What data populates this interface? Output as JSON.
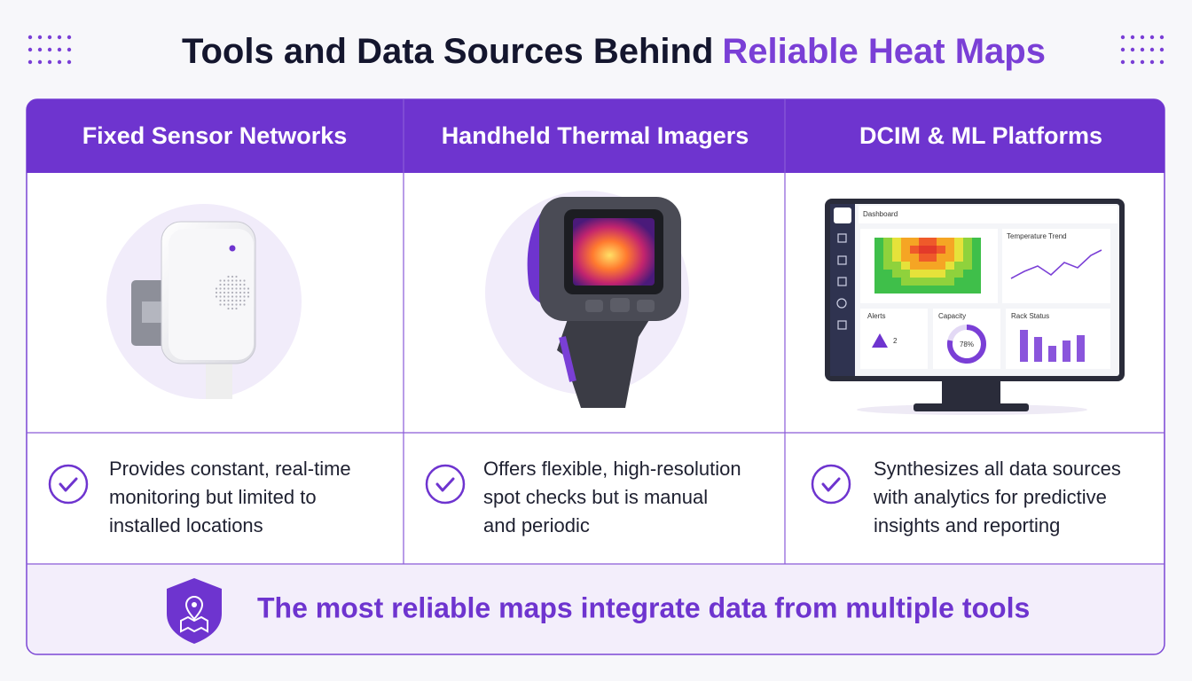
{
  "header": {
    "title": "Tools and Data Sources Behind",
    "title_highlight": "Reliable Heat Maps"
  },
  "columns": [
    {
      "title": "Fixed Sensor Networks",
      "description": [
        "Provides constant, real-time",
        "monitoring but limited to",
        "installed locations"
      ]
    },
    {
      "title": "Handheld Thermal Imagers",
      "description": [
        "Offers flexible, high-resolution",
        "spot checks but is manual",
        "and periodic"
      ]
    },
    {
      "title": "DCIM & ML Platforms",
      "description": [
        "Synthesizes all data sources",
        "with analytics for predictive",
        "insights and reporting"
      ]
    }
  ],
  "dashboard": {
    "title": "Dashboard",
    "trend": "Temperature Trend",
    "alerts": "Alerts",
    "alert_count": "2",
    "capacity": "Capacity",
    "capacity_value": "78%",
    "racks": "Rack Status"
  },
  "footer": {
    "text": "The most reliable maps integrate data from multiple tools"
  }
}
